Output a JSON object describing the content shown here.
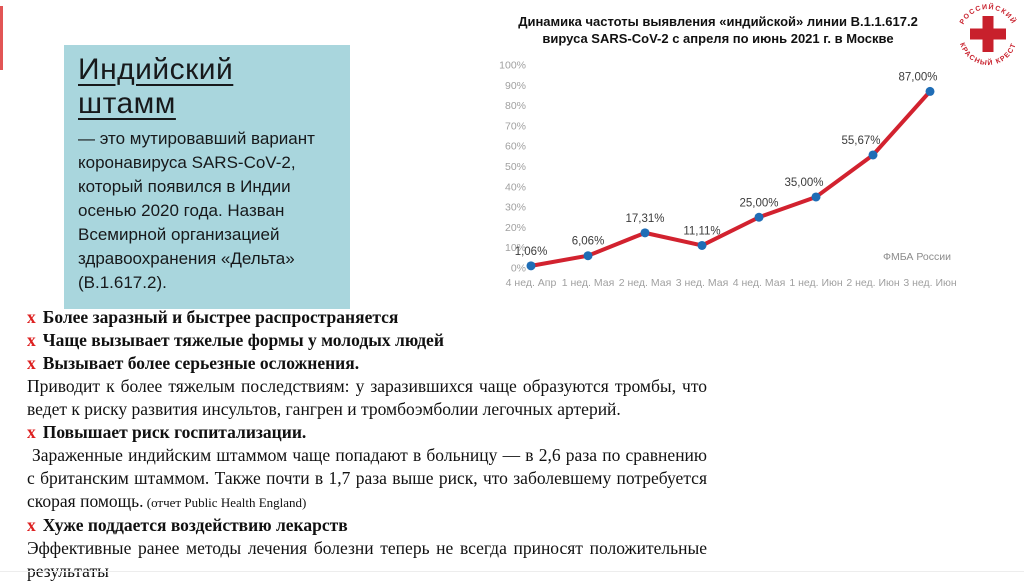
{
  "colors": {
    "info_box_bg": "#a9d6dd",
    "accent_red": "#dd1f1f",
    "logo_red": "#c8202c",
    "edge_bar": "#e25555"
  },
  "info_box": {
    "title": "Индийский штамм",
    "body": "— это мутировавший вариант коронавируса SARS-CoV-2, который появился в Индии осенью 2020 года. Назван Всемирной организацией здравоохранения «Дельта» (B.1.617.2)."
  },
  "logo": {
    "text_top": "РОССИЙСКИЙ",
    "text_bottom": "КРАСНЫЙ КРЕСТ"
  },
  "marker_char": "x",
  "statements": [
    {
      "style": "head",
      "text": "Более заразный и быстрее распространяется"
    },
    {
      "style": "head",
      "text": "Чаще вызывает тяжелые формы у молодых людей"
    },
    {
      "style": "head",
      "text": "Вызывает более серьезные осложнения."
    },
    {
      "style": "body",
      "text": "Приводит к более тяжелым последствиям: у заразившихся чаще образуются тромбы, что ведет к риску развития инсультов, гангрен и тромбоэмболии легочных артерий."
    },
    {
      "style": "head",
      "text": "Повышает риск госпитализации."
    },
    {
      "style": "body",
      "indent": true,
      "text": "Зараженные индийским штаммом чаще попадают в больницу — в 2,6 раза по сравнению с британским штаммом. Также почти в 1,7 раза выше риск, что заболевшему потребуется скорая помощь.",
      "note": "(отчет Public Health England)"
    },
    {
      "style": "head",
      "text": "Хуже поддается воздействию лекарств"
    },
    {
      "style": "body",
      "text": "Эффективные ранее методы лечения болезни теперь не всегда приносят положительные результаты"
    }
  ],
  "chart_data": {
    "type": "line",
    "title_line1": "Динамика частоты выявления «индийской» линии B.1.1.617.2",
    "title_line2": "вируса SARS-CoV-2 с апреля по июнь 2021 г. в Москве",
    "categories": [
      "4 нед. Апр",
      "1 нед. Мая",
      "2 нед. Мая",
      "3 нед. Мая",
      "4 нед. Мая",
      "1 нед. Июн",
      "2 нед. Июн",
      "3 нед. Июн"
    ],
    "values": [
      1.06,
      6.06,
      17.31,
      11.11,
      25.0,
      35.0,
      55.67,
      87.0
    ],
    "value_labels": [
      "1,06%",
      "6,06%",
      "17,31%",
      "11,11%",
      "25,00%",
      "35,00%",
      "55,67%",
      "87,00%"
    ],
    "ylim": [
      0,
      100
    ],
    "y_tick_step": 10,
    "y_tick_suffix": "%",
    "grid": false,
    "legend": "none",
    "line_color": "#d2222f",
    "marker_color": "#1f6db6",
    "source": "ФМБА России"
  }
}
